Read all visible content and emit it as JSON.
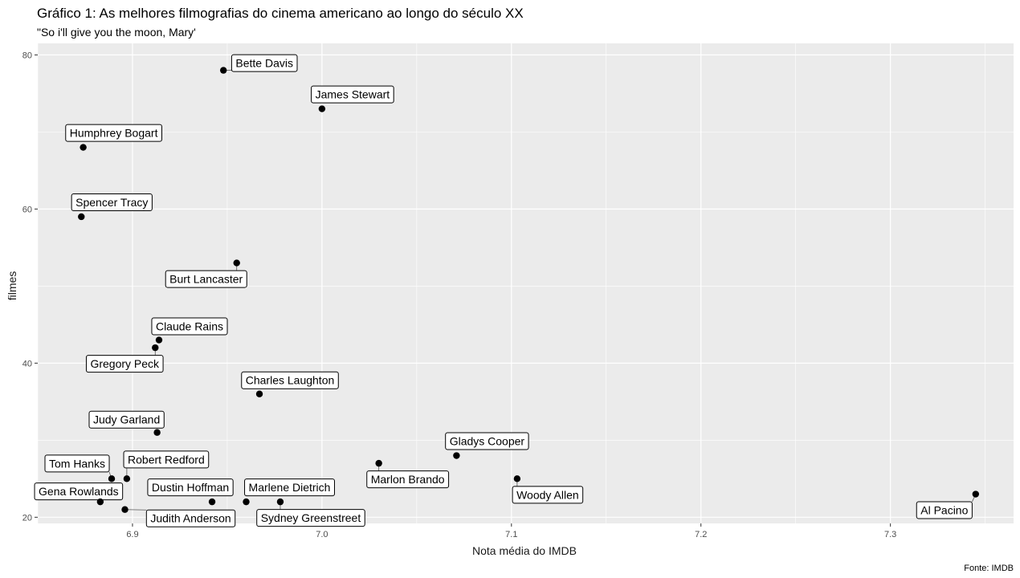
{
  "chart_data": {
    "type": "scatter",
    "title": "Gráfico 1: As melhores filmografias do cinema americano ao longo do século XX",
    "subtitle": "\"So i'll give you the moon, Mary'",
    "xlabel": "Nota média do IMDB",
    "ylabel": "filmes",
    "caption": "Fonte: IMDB",
    "xlim": [
      6.85,
      7.365
    ],
    "ylim": [
      19.2,
      81.5
    ],
    "xticks": [
      6.9,
      7.0,
      7.1,
      7.2,
      7.3
    ],
    "xtick_labels": [
      "6.9",
      "7.0",
      "7.1",
      "7.2",
      "7.3"
    ],
    "yticks": [
      20,
      40,
      60,
      80
    ],
    "ytick_labels": [
      "20",
      "40",
      "60",
      "80"
    ],
    "grid": true,
    "points": [
      {
        "name": "Bette Davis",
        "x": 6.948,
        "y": 78
      },
      {
        "name": "James Stewart",
        "x": 7.0,
        "y": 73
      },
      {
        "name": "Humphrey Bogart",
        "x": 6.874,
        "y": 68
      },
      {
        "name": "Spencer Tracy",
        "x": 6.873,
        "y": 59
      },
      {
        "name": "Burt Lancaster",
        "x": 6.955,
        "y": 53
      },
      {
        "name": "Claude Rains",
        "x": 6.914,
        "y": 43
      },
      {
        "name": "Gregory Peck",
        "x": 6.912,
        "y": 42
      },
      {
        "name": "Charles Laughton",
        "x": 6.967,
        "y": 36
      },
      {
        "name": "Judy Garland",
        "x": 6.913,
        "y": 31
      },
      {
        "name": "Gladys Cooper",
        "x": 7.071,
        "y": 28
      },
      {
        "name": "Marlon Brando",
        "x": 7.03,
        "y": 27
      },
      {
        "name": "Tom Hanks",
        "x": 6.889,
        "y": 25
      },
      {
        "name": "Robert Redford",
        "x": 6.897,
        "y": 25
      },
      {
        "name": "Woody Allen",
        "x": 7.103,
        "y": 25
      },
      {
        "name": "Al Pacino",
        "x": 7.345,
        "y": 23
      },
      {
        "name": "Gena Rowlands",
        "x": 6.883,
        "y": 22
      },
      {
        "name": "Dustin Hoffman",
        "x": 6.942,
        "y": 22
      },
      {
        "name": "Marlene Dietrich",
        "x": 6.96,
        "y": 22
      },
      {
        "name": "Sydney Greenstreet",
        "x": 6.978,
        "y": 22
      },
      {
        "name": "Judith Anderson",
        "x": 6.896,
        "y": 21
      }
    ]
  }
}
